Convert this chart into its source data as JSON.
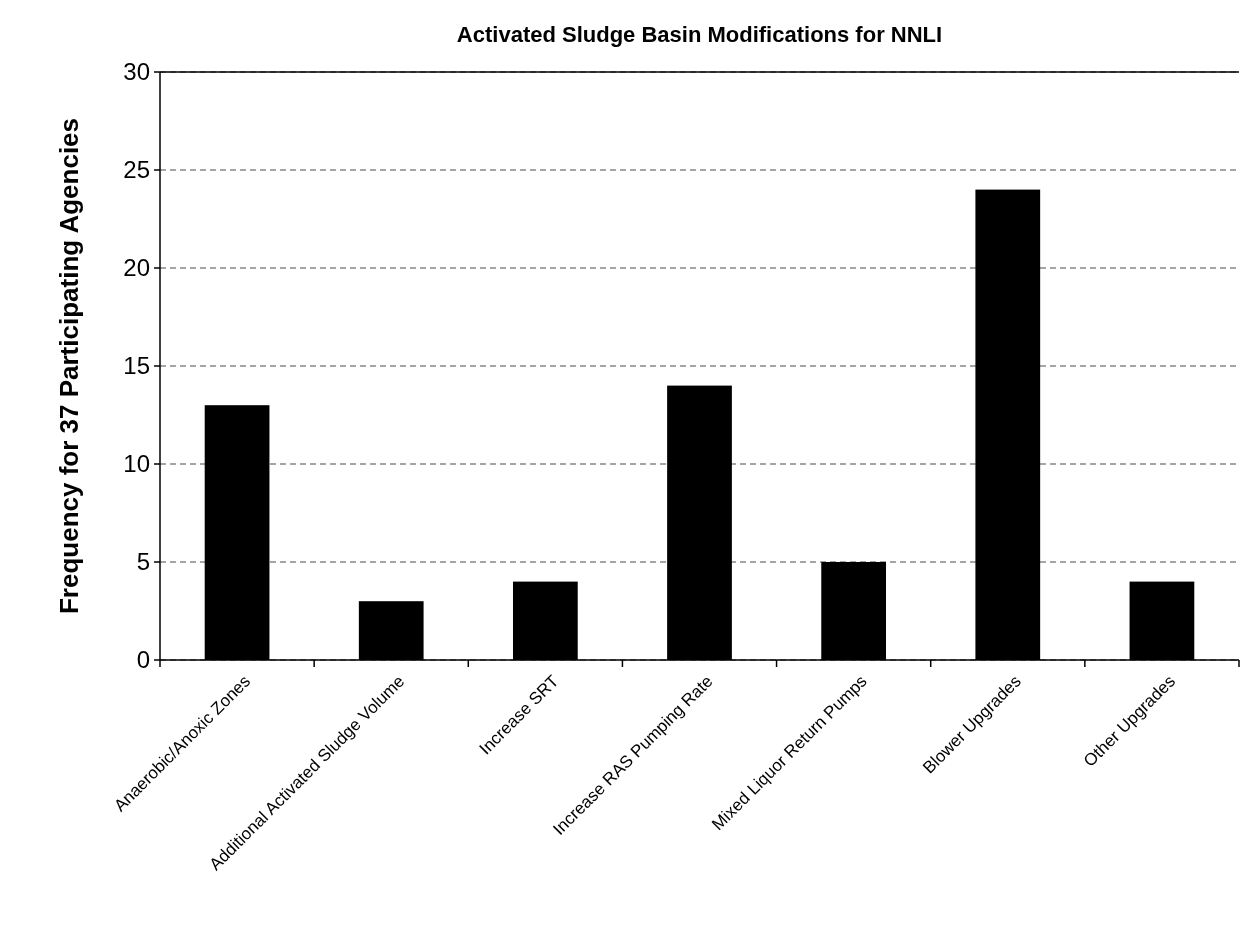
{
  "chart_data": {
    "type": "bar",
    "title": "Activated Sludge Basin Modifications for NNLI",
    "ylabel": "Frequency for 37 Participating Agencies",
    "categories": [
      "Anaerobic/Anoxic Zones",
      "Additional Activated Sludge Volume",
      "Increase SRT",
      "Increase RAS Pumping Rate",
      "Mixed Liquor Return Pumps",
      "Blower Upgrades",
      "Other Upgrades"
    ],
    "values": [
      13,
      3,
      4,
      14,
      5,
      24,
      4
    ],
    "color": "#000000",
    "ylim": [
      0,
      30
    ],
    "yticks": [
      0,
      5,
      10,
      15,
      20,
      25,
      30
    ],
    "grid": "y",
    "line_style": "dashed"
  }
}
